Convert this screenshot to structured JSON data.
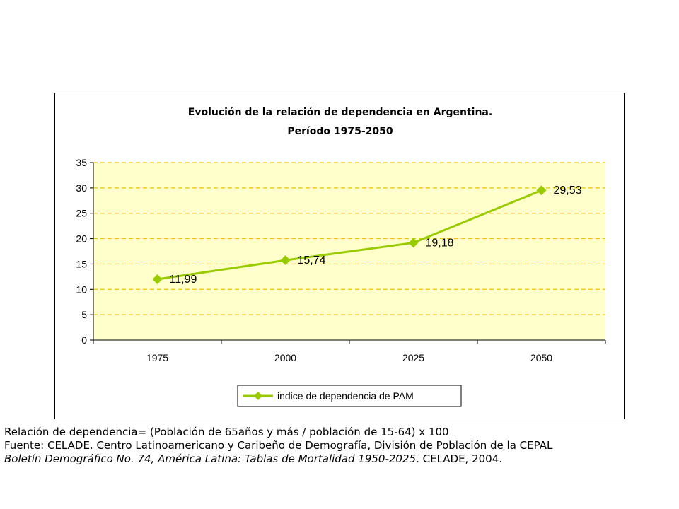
{
  "chart_data": {
    "type": "line",
    "title": "Evolución de la relación de dependencia en Argentina.",
    "subtitle": "Período 1975-2050",
    "categories": [
      "1975",
      "2000",
      "2025",
      "2050"
    ],
    "series": [
      {
        "name": "indice de dependencia de PAM",
        "values": [
          11.99,
          15.74,
          19.18,
          29.53
        ],
        "labels": [
          "11,99",
          "15,74",
          "19,18",
          "29,53"
        ],
        "color": "#99cc00",
        "marker": "diamond"
      }
    ],
    "ylim": [
      0,
      35
    ],
    "yticks": [
      0,
      5,
      10,
      15,
      20,
      25,
      30,
      35
    ],
    "grid": true,
    "grid_color": "#f0c400",
    "plot_background": "#ffffcc",
    "legend_position": "bottom"
  },
  "notes": {
    "line1": "Relación de dependencia= (Población de 65años y más / población de 15-64) x 100",
    "line2": "Fuente: CELADE. Centro Latinoamericano y Caribeño de Demografía, División de Población de la CEPAL",
    "line3_italic": "Boletín Demográfico No. 74, América Latina: Tablas de Mortalidad 1950-2025",
    "line3_rest": ". CELADE, 2004."
  }
}
